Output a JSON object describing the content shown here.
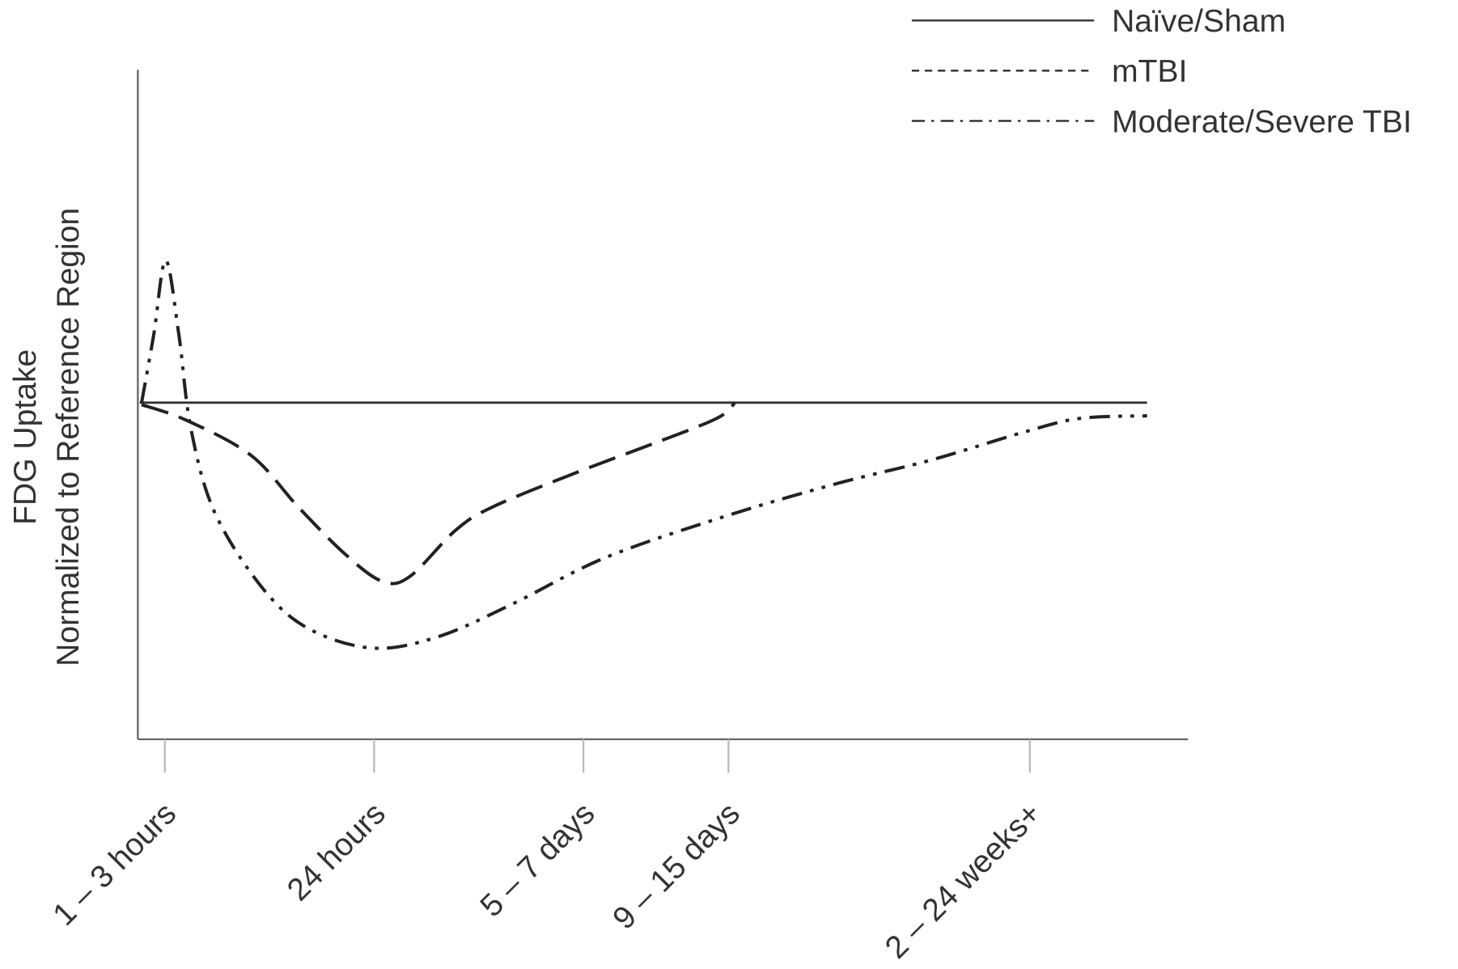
{
  "chart_data": {
    "type": "line",
    "y_label": [
      "FDG Uptake",
      "Normalized to Reference Region"
    ],
    "xlim": [
      0.871,
      5.889
    ],
    "ylim": [
      0,
      2
    ],
    "xticks": [
      {
        "value": 1,
        "label": "1 – 3 hours"
      },
      {
        "value": 2,
        "label": "24 hours"
      },
      {
        "value": 3,
        "label": "5 – 7 days"
      },
      {
        "value": 3.693,
        "label": "9 – 15 days"
      },
      {
        "value": 5.133,
        "label": "2 – 24 weeks+"
      }
    ],
    "legend": "top-right",
    "series": [
      {
        "name": "Naïve/Sham",
        "color": "#333333",
        "dash": "solid",
        "x": [
          0.88,
          5.693
        ],
        "values": [
          1.0,
          1.0
        ]
      },
      {
        "name": "mTBI",
        "color": "#222222",
        "dash": "dashed",
        "x": [
          0.889,
          1.102,
          1.413,
          1.636,
          1.858,
          2.036,
          2.169,
          2.391,
          2.569,
          2.969,
          3.324,
          3.636,
          3.724
        ],
        "values": [
          0.994,
          0.948,
          0.843,
          0.691,
          0.552,
          0.47,
          0.483,
          0.622,
          0.691,
          0.793,
          0.876,
          0.953,
          1.0
        ]
      },
      {
        "name": "Moderate/Severe TBI",
        "color": "#222222",
        "dash": "dashdotdot",
        "x": [
          0.889,
          0.947,
          1.004,
          1.067,
          1.124,
          1.236,
          1.458,
          1.68,
          1.991,
          2.302,
          2.658,
          3.102,
          3.68,
          4.213,
          4.658,
          5.102,
          5.369,
          5.693
        ],
        "values": [
          1.0,
          1.202,
          1.423,
          1.202,
          0.925,
          0.677,
          0.456,
          0.331,
          0.271,
          0.304,
          0.401,
          0.539,
          0.663,
          0.76,
          0.829,
          0.912,
          0.953,
          0.961
        ]
      }
    ]
  }
}
